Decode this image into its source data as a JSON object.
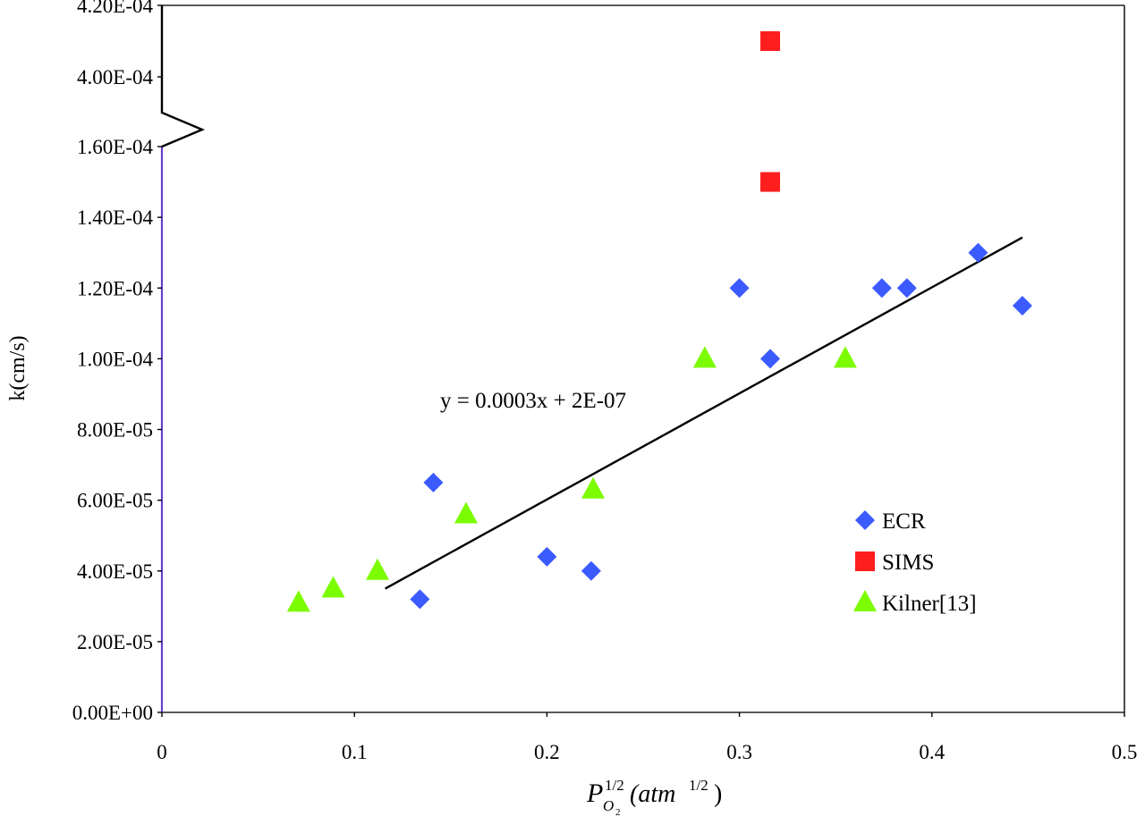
{
  "chart_data": {
    "type": "scatter",
    "title": "",
    "ylabel": "k(cm/s)",
    "xlabel": {
      "base": "P",
      "subscript": "O",
      "subscript_sub": "2",
      "superscript": "1/2",
      "unit_open": "(atm",
      "unit_superscript": "1/2",
      "unit_close": ")"
    },
    "xlim": [
      0,
      0.5
    ],
    "x_ticks": [
      "0",
      "0.1",
      "0.2",
      "0.3",
      "0.4",
      "0.5"
    ],
    "ylim": [
      0,
      0.00042
    ],
    "y_axis_break": {
      "lower_max": 0.00016,
      "upper_min": 0.00039
    },
    "y_ticks": [
      "0.00E+00",
      "2.00E-05",
      "4.00E-05",
      "6.00E-05",
      "8.00E-05",
      "1.00E-04",
      "1.20E-04",
      "1.40E-04",
      "1.60E-04",
      "4.00E-04",
      "4.20E-04"
    ],
    "grid": false,
    "legend_position": "bottom-right",
    "series": [
      {
        "name": "ECR",
        "marker": "diamond",
        "color": "#3B5BFF",
        "points": [
          [
            0.134,
            3.2e-05
          ],
          [
            0.141,
            6.5e-05
          ],
          [
            0.2,
            4.4e-05
          ],
          [
            0.223,
            4e-05
          ],
          [
            0.3,
            0.00012
          ],
          [
            0.316,
            0.0001
          ],
          [
            0.374,
            0.00012
          ],
          [
            0.387,
            0.00012
          ],
          [
            0.424,
            0.00013
          ],
          [
            0.447,
            0.000115
          ]
        ]
      },
      {
        "name": "SIMS",
        "marker": "square",
        "color": "#FF1E1E",
        "points": [
          [
            0.316,
            0.00015
          ],
          [
            0.316,
            0.00041
          ]
        ]
      },
      {
        "name": "Kilner[13]",
        "marker": "triangle",
        "color": "#7CFC00",
        "points": [
          [
            0.071,
            3.1e-05
          ],
          [
            0.089,
            3.5e-05
          ],
          [
            0.112,
            4e-05
          ],
          [
            0.158,
            5.6e-05
          ],
          [
            0.224,
            6.3e-05
          ],
          [
            0.282,
            0.0001
          ],
          [
            0.355,
            0.0001
          ]
        ]
      }
    ],
    "trendline": {
      "slope": 0.0003,
      "intercept": 2e-07,
      "x_start": 0.116,
      "x_end": 0.447,
      "color": "#000000"
    },
    "annotations": [
      {
        "text": "y = 0.0003x + 2E-07"
      }
    ]
  }
}
